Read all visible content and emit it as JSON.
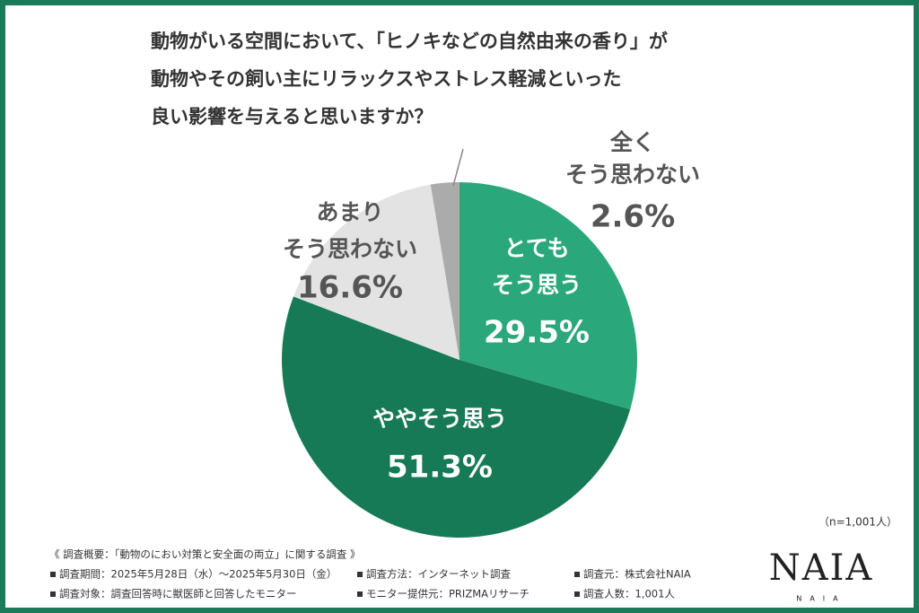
{
  "chart_data": {
    "type": "pie",
    "title": [
      "動物がいる空間において、「ヒノキなどの自然由来の香り」が",
      "動物やその飼い主にリラックスやストレス軽減といった",
      "良い影響を与えると思いますか？"
    ],
    "categories": [
      [
        "とても",
        "そう思う"
      ],
      [
        "ややそう思う"
      ],
      [
        "あまり",
        "そう思わない"
      ],
      [
        "全く",
        "そう思わない"
      ]
    ],
    "values": [
      29.5,
      51.3,
      16.6,
      2.6
    ],
    "value_labels": [
      "29.5%",
      "51.3%",
      "16.6%",
      "2.6%"
    ],
    "colors": [
      "#2aa87c",
      "#177a57",
      "#e3e3e3",
      "#ababab"
    ],
    "note": "（n=1,001人）"
  },
  "footer": {
    "heading": "《 調査概要：「動物のにおい対策と安全面の両立」に関する調査 》",
    "items": [
      [
        "調査期間：2025年5月28日（水）～2025年5月30日（金）",
        "調査方法：インターネット調査",
        "調査元：株式会社NAIA"
      ],
      [
        "調査対象：調査回答時に獣医師と回答したモニター",
        "モニター提供元：PRIZMAリサーチ",
        "調査人数：1,001人"
      ]
    ],
    "logo": "NAIA"
  }
}
